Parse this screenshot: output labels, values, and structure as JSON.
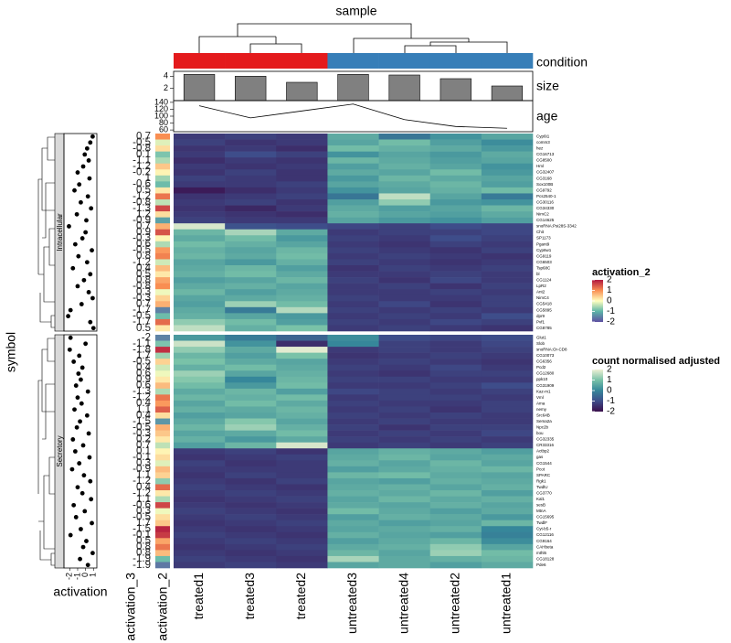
{
  "chart_data": {
    "type": "heatmap",
    "title": "sample",
    "row_axis_label": "symbol",
    "columns": [
      "treated1",
      "treated3",
      "treated2",
      "untreated3",
      "untreated4",
      "untreated2",
      "untreated1"
    ],
    "condition": {
      "label": "condition",
      "colors": [
        "#e41a1c",
        "#e41a1c",
        "#e41a1c",
        "#377eb8",
        "#377eb8",
        "#377eb8",
        "#377eb8"
      ]
    },
    "size": {
      "label": "size",
      "values": [
        4.3,
        4.0,
        3.0,
        4.3,
        4.2,
        3.6,
        2.4
      ],
      "color": "#808080",
      "ylim": [
        0,
        4.8
      ],
      "yticks": [
        2,
        4
      ]
    },
    "age": {
      "label": "age",
      "values": [
        130,
        95,
        115,
        135,
        90,
        70,
        65
      ],
      "ylim": [
        55,
        145
      ],
      "yticks": [
        60,
        80,
        100,
        120,
        140
      ]
    },
    "activation_label": "activation",
    "activation_xlim": [
      -2.5,
      1.2
    ],
    "activation_xticks": [
      -2,
      -1,
      0,
      1
    ],
    "activation_2_label": "activation_2",
    "activation_3_label": "activation_3",
    "groups": [
      {
        "name": "Intracellular",
        "symbols": [
          "Cyp6t1",
          "comm3",
          "hez",
          "CG16713",
          "CG8500",
          "Hml",
          "CG32407",
          "CG3168",
          "Sox100B",
          "CG9792",
          "Pcs2540-1",
          "CG30116",
          "CG34330",
          "NimC2",
          "CG14625",
          "snoRNA:Psi28S-3342",
          "Chit",
          "SP1173",
          "Pgant9",
          "Cyp6w1",
          "CG9119",
          "CG6503",
          "Tsp68C",
          "bl",
          "CG1124",
          "LpR2",
          "Ant2",
          "NimC4",
          "CG5418",
          "CG5895",
          "dpr9",
          "Pvf1",
          "CG8785"
        ],
        "activation": [
          0.9,
          0.6,
          0.2,
          -0.1,
          0.4,
          -0.3,
          -1.0,
          0.5,
          -0.8,
          -1.4,
          0.3,
          -0.6,
          0.7,
          -1.1,
          0.1,
          -2.1,
          0.0,
          -0.4,
          -1.3,
          0.8,
          -0.9,
          0.2,
          -1.6,
          0.6,
          -0.2,
          -1.0,
          0.4,
          0.9,
          -0.5,
          -1.9,
          -2.2,
          0.6,
          1.0
        ],
        "activation_2": [
          1.0,
          -0.2,
          0.3,
          -0.8,
          -0.5,
          0.5,
          0.1,
          -0.6,
          -0.9,
          0.2,
          1.2,
          -0.4,
          1.6,
          0.3,
          -1.2,
          0.7,
          1.5,
          0.1,
          -0.5,
          0.9,
          1.1,
          -0.3,
          0.6,
          0.2,
          0.8,
          1.0,
          -0.1,
          0.4,
          0.7,
          -1.5,
          -0.9,
          1.3,
          0.2
        ],
        "activation_3": [
          0.7,
          -0.5,
          -0.8,
          0.1,
          -1.1,
          -1.2,
          -0.2,
          1.0,
          -0.6,
          0.5,
          -1.2,
          -0.8,
          -1.3,
          1.2,
          -0.9,
          0.7,
          0.9,
          -0.3,
          0.6,
          -0.5,
          0.8,
          -1.2,
          0.4,
          0.5,
          0.8,
          -0.8,
          0.3,
          -0.3,
          0.7,
          -1.7,
          -0.5,
          -1.7,
          0.5
        ],
        "values": [
          [
            -1.3,
            -1.2,
            -1.3,
            0.6,
            -0.3,
            0.2,
            0.5
          ],
          [
            -1.2,
            -1.4,
            -1.3,
            0.5,
            0.9,
            0.4,
            0.1
          ],
          [
            -1.4,
            -1.3,
            -1.5,
            0.9,
            0.7,
            0.6,
            0.3
          ],
          [
            -1.3,
            -1.0,
            -1.2,
            0.2,
            0.5,
            0.3,
            0.6
          ],
          [
            -1.5,
            -1.3,
            -1.4,
            0.8,
            0.6,
            0.4,
            0.5
          ],
          [
            -1.3,
            -1.4,
            -1.3,
            0.4,
            0.7,
            0.5,
            0.2
          ],
          [
            -1.4,
            -1.2,
            -1.4,
            0.6,
            0.5,
            0.9,
            0.3
          ],
          [
            -1.2,
            -1.3,
            -1.4,
            0.3,
            0.8,
            0.6,
            0.5
          ],
          [
            -1.3,
            -1.3,
            -1.2,
            0.5,
            0.6,
            0.8,
            0.4
          ],
          [
            -1.8,
            -1.5,
            -1.3,
            0.2,
            0.5,
            0.7,
            0.9
          ],
          [
            -1.4,
            -1.3,
            -1.2,
            -0.3,
            1.6,
            0.5,
            -0.2
          ],
          [
            -1.3,
            -1.2,
            -1.4,
            0.4,
            1.2,
            0.3,
            0.2
          ],
          [
            -1.4,
            -1.6,
            -1.3,
            0.6,
            0.4,
            0.5,
            0.8
          ],
          [
            -1.3,
            -1.4,
            -1.5,
            0.7,
            0.5,
            0.4,
            0.6
          ],
          [
            -1.2,
            -1.3,
            -1.3,
            0.5,
            0.3,
            0.2,
            0.4
          ],
          [
            1.8,
            -0.9,
            -1.0,
            -1.1,
            -1.2,
            -1.0,
            -1.1
          ],
          [
            0.8,
            1.4,
            0.6,
            -1.3,
            -1.2,
            -1.2,
            -1.1
          ],
          [
            0.6,
            0.9,
            0.3,
            -1.2,
            -1.3,
            -1.0,
            -1.2
          ],
          [
            0.9,
            0.7,
            0.5,
            -1.3,
            -1.4,
            -1.2,
            -1.3
          ],
          [
            0.7,
            0.5,
            0.8,
            -1.2,
            -1.3,
            -1.4,
            -1.2
          ],
          [
            0.8,
            0.6,
            0.9,
            -1.3,
            -1.2,
            -1.3,
            -1.4
          ],
          [
            0.5,
            0.3,
            0.7,
            -1.2,
            -1.3,
            -1.4,
            -1.3
          ],
          [
            0.6,
            0.8,
            0.4,
            -1.4,
            -1.2,
            -1.3,
            -1.2
          ],
          [
            0.7,
            0.9,
            0.6,
            -1.3,
            -1.3,
            -1.2,
            -1.3
          ],
          [
            0.4,
            0.5,
            0.8,
            -1.2,
            -1.4,
            -1.1,
            -1.3
          ],
          [
            0.6,
            0.7,
            0.5,
            -1.3,
            -1.2,
            -1.4,
            -1.2
          ],
          [
            0.8,
            0.4,
            0.6,
            -1.3,
            -1.3,
            -1.2,
            -1.3
          ],
          [
            0.5,
            0.6,
            0.7,
            -1.2,
            -1.3,
            -1.3,
            -1.2
          ],
          [
            0.4,
            1.3,
            0.9,
            -1.3,
            -1.1,
            -1.4,
            -1.2
          ],
          [
            0.6,
            -0.2,
            1.5,
            -1.2,
            -1.3,
            -1.2,
            -1.3
          ],
          [
            0.7,
            0.5,
            0.3,
            -1.3,
            -1.2,
            -1.3,
            -1.0
          ],
          [
            1.2,
            0.9,
            0.4,
            -1.2,
            -1.3,
            -1.1,
            -1.2
          ],
          [
            1.6,
            0.7,
            1.0,
            -1.3,
            -1.2,
            -1.3,
            -1.4
          ]
        ]
      },
      {
        "name": "Secretory",
        "symbols": [
          "Glut1",
          "Slob",
          "snoRNA:Or-CD8",
          "CG10073",
          "CG6356",
          "Pcd2",
          "CG12680",
          "ppk10",
          "CG31909",
          "Kaz-m1",
          "Vml",
          "Ama",
          "nemy",
          "Src64B",
          "Sema2a",
          "Npc2b",
          "bou",
          "CG32335",
          "CR33316",
          "Actbp2",
          "gas",
          "CG1544",
          "Pcot",
          "SPARC",
          "Rgk1",
          "TwdlU",
          "CG3770",
          "Kal1",
          "sesB",
          "MtnA",
          "CG15695",
          "TwdlF",
          "Cyt-b5-r",
          "CG12116",
          "CG9164",
          "CAHbeta",
          "mthl6",
          "CG18128",
          "Pde6"
        ],
        "activation": [
          -1.9,
          0.0,
          -2.0,
          -0.8,
          -1.5,
          -0.4,
          -0.9,
          -0.6,
          -1.2,
          0.3,
          -1.0,
          -0.5,
          -1.4,
          0.2,
          -0.7,
          -1.1,
          0.4,
          -1.6,
          -0.3,
          -1.3,
          0.5,
          -0.8,
          -1.7,
          -0.2,
          0.6,
          -1.0,
          -0.4,
          0.7,
          -1.5,
          -0.1,
          -1.2,
          0.8,
          -0.6,
          -1.9,
          0.1,
          -0.3,
          0.9,
          -0.7,
          0.3
        ],
        "activation_2": [
          -1.5,
          -0.8,
          1.8,
          -0.6,
          0.4,
          -0.3,
          -0.1,
          0.2,
          0.6,
          -0.5,
          1.2,
          0.9,
          1.4,
          0.3,
          -1.3,
          0.7,
          0.5,
          0.2,
          -0.4,
          0.1,
          0.3,
          -0.2,
          0.6,
          0.4,
          -0.7,
          1.3,
          0.2,
          -0.5,
          1.6,
          -0.1,
          0.3,
          0.5,
          1.9,
          1.7,
          0.8,
          1.2,
          0.6,
          -0.9,
          -1.6
        ],
        "activation_3": [
          -2.0,
          -1.1,
          -1.8,
          1.7,
          -0.5,
          0.4,
          0.6,
          0.9,
          0.6,
          -1.3,
          -1.2,
          0.4,
          1.1,
          0.4,
          -1.5,
          -0.5,
          -0.3,
          0.2,
          0.7,
          0.1,
          -0.1,
          0.3,
          -0.9,
          1.1,
          -1.2,
          0.4,
          -1.2,
          1.1,
          -0.6,
          0.3,
          -0.5,
          1.7,
          -1.5,
          -0.1,
          0.5,
          0.8,
          0.8,
          -1.9,
          -1.9
        ],
        "values": [
          [
            0.3,
            -0.2,
            -0.6,
            0.1,
            -1.0,
            -1.1,
            -1.0
          ],
          [
            1.7,
            0.2,
            -1.5,
            0.0,
            -1.2,
            -1.3,
            -1.1
          ],
          [
            1.2,
            0.6,
            1.9,
            -1.3,
            -1.2,
            -1.3,
            -1.2
          ],
          [
            0.8,
            0.4,
            1.0,
            -1.4,
            -1.3,
            -1.2,
            -1.3
          ],
          [
            1.0,
            0.6,
            0.5,
            -1.3,
            -1.2,
            -1.3,
            -1.4
          ],
          [
            0.7,
            0.9,
            0.6,
            -1.2,
            -1.3,
            -1.1,
            -1.3
          ],
          [
            1.3,
            0.5,
            0.7,
            -1.3,
            -1.4,
            -1.2,
            -1.2
          ],
          [
            1.1,
            0.0,
            0.8,
            -1.2,
            -1.2,
            -1.3,
            -1.3
          ],
          [
            0.9,
            0.3,
            0.9,
            -1.3,
            -1.3,
            -1.2,
            -1.0
          ],
          [
            0.6,
            0.8,
            0.4,
            -1.1,
            -1.2,
            -1.3,
            -1.2
          ],
          [
            0.8,
            0.7,
            0.9,
            -1.3,
            -1.2,
            -1.2,
            -1.3
          ],
          [
            0.5,
            0.9,
            0.6,
            -1.2,
            -1.3,
            -1.3,
            -1.2
          ],
          [
            0.7,
            0.6,
            0.8,
            -1.3,
            -1.2,
            -1.4,
            -1.2
          ],
          [
            0.4,
            0.5,
            0.7,
            -1.2,
            -1.3,
            -1.2,
            -1.3
          ],
          [
            0.6,
            1.1,
            0.5,
            -1.3,
            -1.2,
            -1.3,
            -1.3
          ],
          [
            0.8,
            1.3,
            0.7,
            -1.2,
            -1.4,
            -1.2,
            -1.2
          ],
          [
            0.5,
            0.6,
            0.9,
            -1.3,
            -1.2,
            -1.3,
            -1.1
          ],
          [
            0.7,
            0.3,
            0.6,
            -1.2,
            -1.3,
            -1.2,
            -1.3
          ],
          [
            0.4,
            0.8,
            1.8,
            -1.3,
            -1.2,
            -1.3,
            -1.2
          ],
          [
            -1.3,
            -1.2,
            -1.4,
            0.5,
            0.7,
            0.6,
            0.4
          ],
          [
            -1.4,
            -1.3,
            -1.2,
            0.6,
            0.8,
            0.5,
            0.6
          ],
          [
            -1.2,
            -1.4,
            -1.3,
            0.7,
            0.5,
            0.8,
            0.5
          ],
          [
            -1.3,
            -1.3,
            -1.3,
            0.4,
            0.6,
            0.7,
            0.8
          ],
          [
            -1.4,
            -1.2,
            -1.3,
            0.8,
            0.9,
            0.6,
            0.5
          ],
          [
            -1.3,
            -1.4,
            -1.2,
            0.5,
            0.4,
            0.7,
            0.6
          ],
          [
            -1.2,
            -1.3,
            -1.4,
            0.6,
            0.7,
            0.5,
            0.7
          ],
          [
            -1.3,
            -1.2,
            -1.3,
            0.7,
            0.6,
            0.8,
            0.4
          ],
          [
            -1.4,
            -1.3,
            -1.2,
            0.5,
            0.8,
            0.6,
            0.7
          ],
          [
            -1.3,
            -1.4,
            -1.3,
            0.6,
            0.5,
            0.7,
            0.5
          ],
          [
            -1.2,
            -1.3,
            -1.4,
            0.9,
            0.6,
            0.4,
            0.6
          ],
          [
            -1.3,
            -1.2,
            -1.3,
            0.4,
            0.7,
            0.6,
            0.3
          ],
          [
            -1.4,
            -1.3,
            -1.2,
            0.6,
            0.4,
            0.5,
            0.8
          ],
          [
            -1.3,
            -1.4,
            -1.3,
            0.5,
            0.6,
            0.7,
            0.0
          ],
          [
            -1.2,
            -1.3,
            -1.4,
            0.7,
            0.5,
            0.4,
            -0.1
          ],
          [
            -1.3,
            -1.2,
            -1.3,
            0.4,
            0.6,
            0.8,
            0.1
          ],
          [
            -1.4,
            -1.3,
            -1.2,
            0.6,
            0.7,
            1.2,
            0.5
          ],
          [
            -1.3,
            -1.4,
            -1.3,
            0.8,
            0.5,
            1.3,
            0.9
          ],
          [
            -1.2,
            -1.3,
            -1.4,
            1.4,
            0.6,
            0.7,
            0.8
          ],
          [
            -1.3,
            -1.2,
            -1.3,
            0.5,
            0.6,
            0.4,
            0.6
          ]
        ]
      }
    ],
    "legends": [
      {
        "title": "activation_2",
        "ticks": [
          2,
          1,
          0,
          -1,
          -2
        ],
        "colors": [
          "#b2183f",
          "#f98e52",
          "#ffffbf",
          "#5db5a8",
          "#5e4fa2"
        ]
      },
      {
        "title": "count normalised adjusted",
        "ticks": [
          2,
          1,
          0,
          -1,
          -2
        ],
        "colors": [
          "#eef0d4",
          "#79c2a8",
          "#36879a",
          "#3e4d8a",
          "#3b0f4b"
        ]
      }
    ]
  }
}
